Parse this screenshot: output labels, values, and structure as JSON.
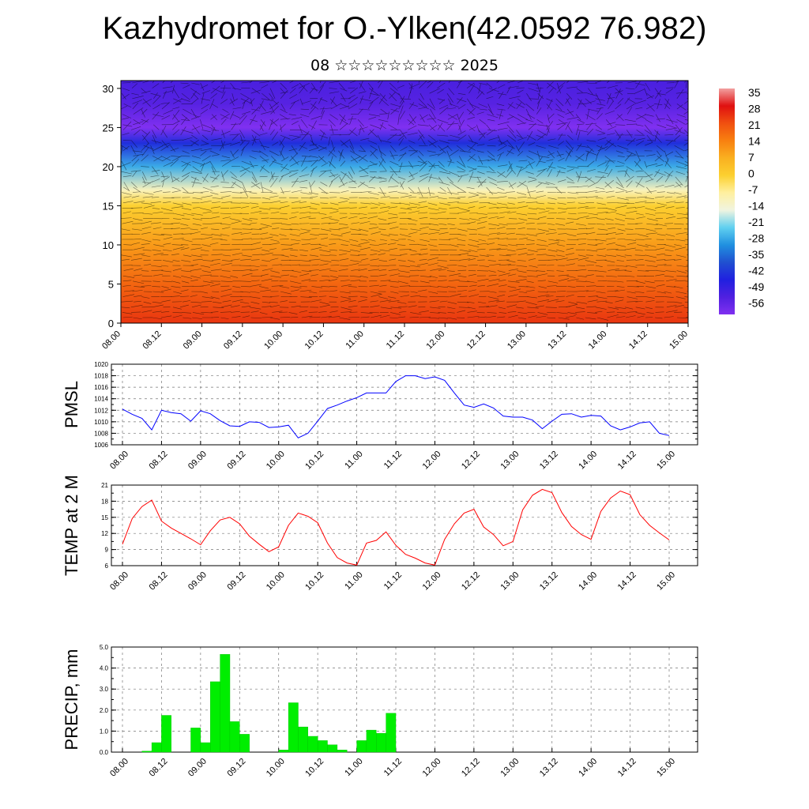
{
  "title": "Kazhydromet for O.-Ylken(42.0592 76.982)",
  "subtitle": "08 ☆☆☆☆☆☆☆☆☆ 2025",
  "x_tick_labels": [
    "08.00",
    "08.12",
    "09.00",
    "09.12",
    "10.00",
    "10.12",
    "11.00",
    "11.12",
    "12.00",
    "12.12",
    "13.00",
    "13.12",
    "14.00",
    "14.12",
    "15.00"
  ],
  "chart_data": [
    {
      "type": "heatmap",
      "title": "",
      "xlabel": "",
      "ylabel": "",
      "x": [
        "08.00",
        "08.12",
        "09.00",
        "09.12",
        "10.00",
        "10.12",
        "11.00",
        "11.12",
        "12.00",
        "12.12",
        "13.00",
        "13.12",
        "14.00",
        "14.12",
        "15.00"
      ],
      "ylim": [
        0,
        31
      ],
      "y_ticks": [
        0,
        5,
        10,
        15,
        20,
        25,
        30
      ],
      "colorbar_labels": [
        "35",
        "28",
        "21",
        "14",
        "7",
        "0",
        "-7",
        "-14",
        "-21",
        "-28",
        "-35",
        "-42",
        "-49",
        "-56"
      ],
      "colorbar_colors": [
        "#f2a0a0",
        "#e01010",
        "#f05010",
        "#f88010",
        "#fab020",
        "#fcd030",
        "#fff0a0",
        "#f0f4e0",
        "#60d0f0",
        "#2090e0",
        "#2050d0",
        "#2020e0",
        "#5020e0",
        "#8030f0"
      ],
      "overlay": "wind barbs",
      "temperature_profile_levels": [
        0,
        5,
        10,
        15,
        17,
        20,
        23,
        25,
        28,
        31
      ],
      "temperature_profile_values": [
        24,
        18,
        10,
        0,
        -10,
        -25,
        -40,
        -56,
        -50,
        -48
      ]
    },
    {
      "type": "line",
      "ylabel": "PMSL",
      "ylim": [
        1006,
        1020
      ],
      "y_ticks": [
        1006,
        1008,
        1010,
        1012,
        1014,
        1016,
        1018,
        1020
      ],
      "series": [
        {
          "color": "#0000ff",
          "x_hours": [
            0,
            3,
            6,
            9,
            12,
            15,
            18,
            21,
            24,
            27,
            30,
            33,
            36,
            39,
            42,
            45,
            48,
            51,
            54,
            57,
            60,
            63,
            66,
            69,
            72,
            75,
            78,
            81,
            84,
            87,
            90,
            93,
            96,
            99,
            102,
            105,
            108,
            111,
            114,
            117,
            120,
            123,
            126,
            129,
            132,
            135,
            138,
            141,
            144,
            147,
            150,
            153,
            156,
            159,
            162,
            165,
            168
          ],
          "values": [
            1012.2,
            1011.3,
            1010.6,
            1008.6,
            1012.0,
            1011.6,
            1011.4,
            1010.1,
            1011.9,
            1011.4,
            1010.2,
            1009.3,
            1009.2,
            1010.0,
            1009.9,
            1009.0,
            1009.1,
            1009.4,
            1007.2,
            1008.0,
            1010.1,
            1012.3,
            1012.9,
            1013.6,
            1014.2,
            1015.0,
            1015.0,
            1015.0,
            1017.0,
            1018.0,
            1018.0,
            1017.5,
            1017.8,
            1017.2,
            1015.0,
            1012.9,
            1012.5,
            1013.1,
            1012.4,
            1011.0,
            1010.8,
            1010.8,
            1010.3,
            1008.8,
            1010.1,
            1011.3,
            1011.4,
            1010.8,
            1011.1,
            1011.0,
            1009.3,
            1008.6,
            1009.1,
            1009.8,
            1010.0,
            1008.0,
            1007.6
          ]
        }
      ]
    },
    {
      "type": "line",
      "ylabel": "TEMP at 2 M",
      "ylim": [
        6,
        21
      ],
      "y_ticks": [
        6,
        9,
        12,
        15,
        18,
        21
      ],
      "series": [
        {
          "color": "#ff0000",
          "x_hours": [
            0,
            3,
            6,
            9,
            12,
            15,
            18,
            21,
            24,
            27,
            30,
            33,
            36,
            39,
            42,
            45,
            48,
            51,
            54,
            57,
            60,
            63,
            66,
            69,
            72,
            75,
            78,
            81,
            84,
            87,
            90,
            93,
            96,
            99,
            102,
            105,
            108,
            111,
            114,
            117,
            120,
            123,
            126,
            129,
            132,
            135,
            138,
            141,
            144,
            147,
            150,
            153,
            156,
            159,
            162,
            165,
            168
          ],
          "values": [
            10.0,
            14.8,
            17.0,
            18.2,
            14.3,
            13.0,
            12.0,
            11.0,
            9.9,
            12.5,
            14.5,
            15.0,
            13.8,
            11.5,
            10.0,
            8.6,
            9.5,
            13.5,
            15.8,
            15.2,
            14.0,
            10.2,
            7.5,
            6.5,
            6.1,
            10.2,
            10.7,
            12.3,
            9.8,
            8.1,
            7.4,
            6.5,
            6.1,
            10.9,
            13.8,
            15.8,
            16.5,
            13.2,
            11.8,
            9.7,
            10.5,
            16.4,
            19.1,
            20.2,
            19.6,
            15.9,
            13.3,
            11.8,
            10.9,
            16.1,
            18.6,
            19.9,
            19.2,
            15.5,
            13.5,
            12.1,
            10.8
          ]
        }
      ]
    },
    {
      "type": "bar",
      "ylabel": "PRECIP, mm",
      "ylim": [
        0,
        5.0
      ],
      "y_ticks": [
        "0.0",
        "1.0",
        "2.0",
        "3.0",
        "4.0",
        "5.0"
      ],
      "series": [
        {
          "color": "#00ee00",
          "x_hours": [
            3,
            6,
            9,
            12,
            15,
            18,
            21,
            24,
            27,
            30,
            33,
            36,
            39,
            42,
            45,
            48,
            51,
            54,
            57,
            60,
            63,
            66,
            69,
            72,
            75,
            78,
            81,
            84,
            87,
            90,
            93,
            96,
            99,
            102,
            105,
            108,
            111,
            114,
            117,
            120,
            123,
            126,
            129,
            132,
            135,
            138,
            141,
            144,
            147,
            150,
            153,
            156,
            159,
            162,
            165,
            168
          ],
          "values": [
            0.0,
            0.0,
            0.05,
            0.45,
            1.75,
            0.0,
            0.0,
            1.15,
            0.45,
            3.35,
            4.65,
            1.45,
            0.85,
            0.0,
            0.0,
            0.0,
            0.1,
            2.35,
            1.2,
            0.75,
            0.55,
            0.35,
            0.1,
            0.0,
            0.55,
            1.05,
            0.9,
            1.85,
            0,
            0,
            0,
            0,
            0,
            0,
            0,
            0,
            0,
            0,
            0,
            0,
            0,
            0,
            0,
            0,
            0,
            0,
            0,
            0,
            0,
            0,
            0,
            0,
            0,
            0,
            0,
            0
          ]
        }
      ]
    }
  ]
}
